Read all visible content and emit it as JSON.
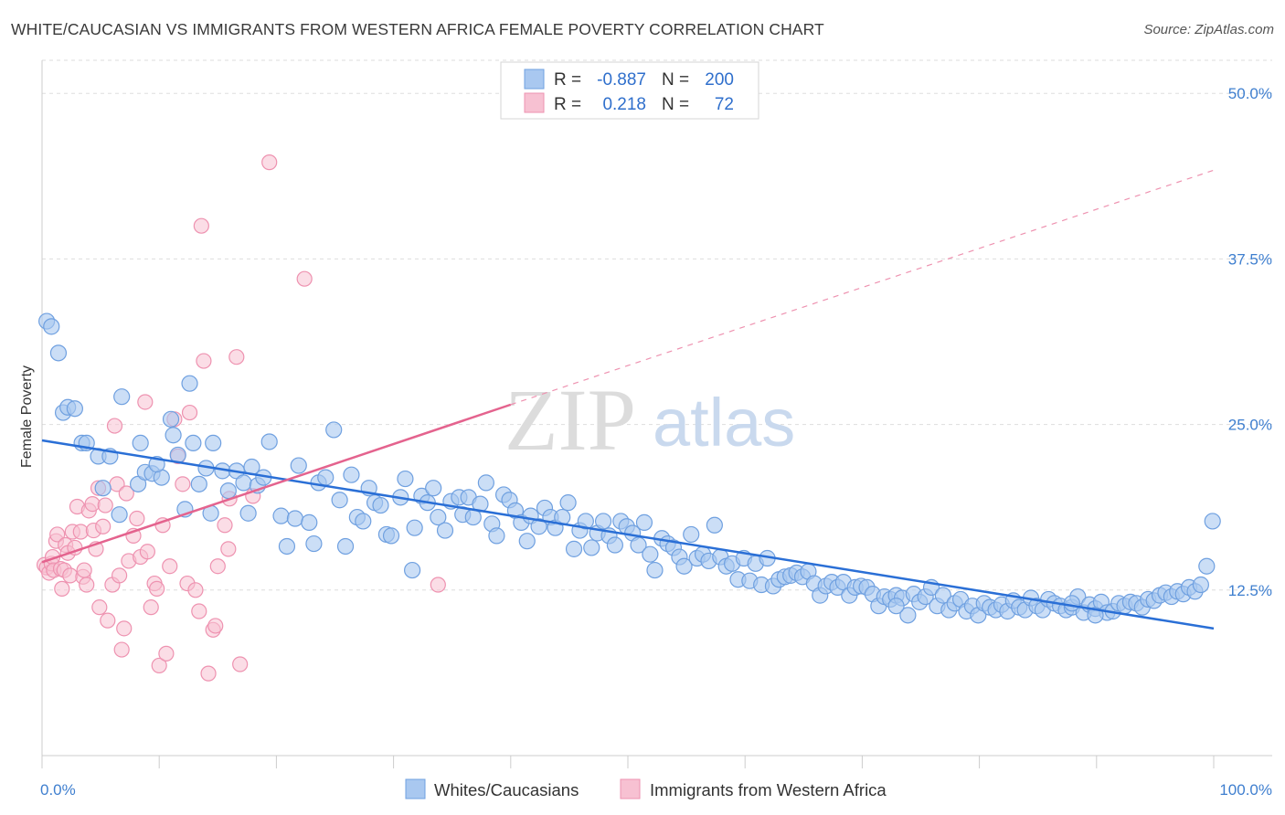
{
  "title": "WHITE/CAUCASIAN VS IMMIGRANTS FROM WESTERN AFRICA FEMALE POVERTY CORRELATION CHART",
  "source": "Source: ZipAtlas.com",
  "watermark": {
    "zip": "ZIP",
    "atlas": "atlas"
  },
  "colors": {
    "blue_fill": "#a9c8f0",
    "blue_stroke": "#6fa0e0",
    "blue_line": "#2a6fd6",
    "pink_fill": "#f7c1d2",
    "pink_stroke": "#ee92b0",
    "pink_line": "#e4638e",
    "tick_label": "#3f7fcf",
    "grid": "#dddddd"
  },
  "legend": {
    "rows": [
      {
        "r_label": "R =",
        "r_value": "-0.887",
        "n_label": "N =",
        "n_value": "200"
      },
      {
        "r_label": "R =",
        "r_value": "0.218",
        "n_label": "N =",
        "n_value": "72"
      }
    ],
    "position": "top-center"
  },
  "bottom_legend": [
    "Whites/Caucasians",
    "Immigrants from Western Africa"
  ],
  "chart_data": {
    "type": "scatter",
    "xlabel": "",
    "ylabel": "Female Poverty",
    "xlim": [
      0,
      100
    ],
    "ylim": [
      0,
      52.5
    ],
    "x_tick_labels": [
      "0.0%",
      "100.0%"
    ],
    "y_ticks": [
      12.5,
      25.0,
      37.5,
      50.0
    ],
    "y_tick_labels": [
      "12.5%",
      "25.0%",
      "37.5%",
      "50.0%"
    ],
    "grid": true,
    "series": [
      {
        "name": "Whites/Caucasians",
        "trend": {
          "x": [
            0,
            100
          ],
          "y": [
            23.8,
            9.6
          ],
          "style": "solid"
        },
        "points": [
          [
            0.4,
            32.8
          ],
          [
            0.8,
            32.4
          ],
          [
            1.4,
            30.4
          ],
          [
            1.8,
            25.9
          ],
          [
            2.2,
            26.3
          ],
          [
            2.8,
            26.2
          ],
          [
            3.4,
            23.6
          ],
          [
            3.8,
            23.6
          ],
          [
            4.8,
            22.6
          ],
          [
            5.8,
            22.6
          ],
          [
            5.2,
            20.2
          ],
          [
            6.6,
            18.2
          ],
          [
            6.8,
            27.1
          ],
          [
            8.2,
            20.5
          ],
          [
            8.4,
            23.6
          ],
          [
            8.8,
            21.4
          ],
          [
            9.4,
            21.3
          ],
          [
            10.2,
            21.0
          ],
          [
            9.8,
            22.0
          ],
          [
            11.0,
            25.4
          ],
          [
            11.2,
            24.2
          ],
          [
            11.6,
            22.7
          ],
          [
            12.2,
            18.6
          ],
          [
            12.6,
            28.1
          ],
          [
            12.9,
            23.6
          ],
          [
            13.4,
            20.5
          ],
          [
            14.0,
            21.7
          ],
          [
            14.4,
            18.3
          ],
          [
            14.6,
            23.6
          ],
          [
            15.4,
            21.5
          ],
          [
            15.9,
            20.0
          ],
          [
            16.6,
            21.5
          ],
          [
            17.2,
            20.6
          ],
          [
            17.6,
            18.3
          ],
          [
            17.9,
            21.8
          ],
          [
            18.4,
            20.4
          ],
          [
            18.9,
            21.0
          ],
          [
            19.4,
            23.7
          ],
          [
            20.4,
            18.1
          ],
          [
            20.9,
            15.8
          ],
          [
            21.6,
            17.9
          ],
          [
            21.9,
            21.9
          ],
          [
            22.8,
            17.6
          ],
          [
            23.2,
            16.0
          ],
          [
            23.6,
            20.6
          ],
          [
            24.2,
            21.0
          ],
          [
            24.9,
            24.6
          ],
          [
            25.4,
            19.3
          ],
          [
            25.9,
            15.8
          ],
          [
            26.4,
            21.2
          ],
          [
            26.9,
            18.0
          ],
          [
            27.4,
            17.7
          ],
          [
            27.9,
            20.2
          ],
          [
            28.4,
            19.1
          ],
          [
            28.9,
            18.9
          ],
          [
            29.4,
            16.7
          ],
          [
            29.8,
            16.6
          ],
          [
            30.6,
            19.5
          ],
          [
            31.0,
            20.9
          ],
          [
            31.6,
            14.0
          ],
          [
            31.8,
            17.2
          ],
          [
            32.4,
            19.6
          ],
          [
            32.9,
            19.1
          ],
          [
            33.4,
            20.2
          ],
          [
            33.8,
            18.0
          ],
          [
            34.4,
            17.0
          ],
          [
            34.9,
            19.2
          ],
          [
            35.6,
            19.5
          ],
          [
            35.9,
            18.2
          ],
          [
            36.4,
            19.5
          ],
          [
            36.8,
            18.0
          ],
          [
            37.4,
            19.0
          ],
          [
            37.9,
            20.6
          ],
          [
            38.4,
            17.5
          ],
          [
            38.8,
            16.6
          ],
          [
            39.4,
            19.7
          ],
          [
            39.9,
            19.3
          ],
          [
            40.4,
            18.5
          ],
          [
            40.9,
            17.6
          ],
          [
            41.4,
            16.2
          ],
          [
            41.7,
            18.1
          ],
          [
            42.4,
            17.3
          ],
          [
            42.9,
            18.7
          ],
          [
            43.4,
            18.0
          ],
          [
            43.8,
            17.2
          ],
          [
            44.4,
            18.0
          ],
          [
            44.9,
            19.1
          ],
          [
            45.4,
            15.6
          ],
          [
            45.9,
            17.0
          ],
          [
            46.4,
            17.7
          ],
          [
            46.9,
            15.7
          ],
          [
            47.4,
            16.8
          ],
          [
            47.9,
            17.7
          ],
          [
            48.4,
            16.6
          ],
          [
            48.9,
            15.9
          ],
          [
            49.4,
            17.7
          ],
          [
            49.9,
            17.3
          ],
          [
            50.4,
            16.8
          ],
          [
            50.9,
            15.9
          ],
          [
            51.4,
            17.6
          ],
          [
            51.9,
            15.2
          ],
          [
            52.3,
            14.0
          ],
          [
            52.9,
            16.4
          ],
          [
            53.4,
            16.0
          ],
          [
            53.9,
            15.7
          ],
          [
            54.4,
            15.0
          ],
          [
            54.8,
            14.3
          ],
          [
            55.4,
            16.7
          ],
          [
            55.9,
            14.9
          ],
          [
            56.4,
            15.2
          ],
          [
            56.9,
            14.7
          ],
          [
            57.4,
            17.4
          ],
          [
            57.9,
            15.0
          ],
          [
            58.4,
            14.3
          ],
          [
            58.9,
            14.5
          ],
          [
            59.4,
            13.3
          ],
          [
            59.9,
            14.9
          ],
          [
            60.4,
            13.2
          ],
          [
            60.9,
            14.5
          ],
          [
            61.4,
            12.9
          ],
          [
            61.9,
            14.9
          ],
          [
            62.4,
            12.8
          ],
          [
            62.9,
            13.3
          ],
          [
            63.4,
            13.5
          ],
          [
            63.9,
            13.6
          ],
          [
            64.4,
            13.8
          ],
          [
            64.9,
            13.5
          ],
          [
            65.4,
            13.9
          ],
          [
            65.9,
            13.0
          ],
          [
            66.4,
            12.1
          ],
          [
            66.9,
            12.8
          ],
          [
            67.4,
            13.1
          ],
          [
            67.9,
            12.7
          ],
          [
            68.4,
            13.1
          ],
          [
            68.9,
            12.1
          ],
          [
            69.4,
            12.7
          ],
          [
            69.9,
            12.8
          ],
          [
            70.4,
            12.7
          ],
          [
            70.9,
            12.2
          ],
          [
            71.4,
            11.3
          ],
          [
            71.9,
            12.0
          ],
          [
            72.4,
            11.8
          ],
          [
            72.9,
            12.1
          ],
          [
            73.4,
            11.9
          ],
          [
            73.9,
            10.6
          ],
          [
            74.4,
            12.2
          ],
          [
            74.9,
            11.6
          ],
          [
            75.4,
            12.0
          ],
          [
            75.9,
            12.7
          ],
          [
            76.4,
            11.3
          ],
          [
            76.9,
            12.1
          ],
          [
            77.4,
            11.0
          ],
          [
            77.9,
            11.5
          ],
          [
            78.4,
            11.8
          ],
          [
            78.9,
            10.9
          ],
          [
            79.4,
            11.3
          ],
          [
            79.9,
            10.6
          ],
          [
            80.4,
            11.5
          ],
          [
            80.9,
            11.2
          ],
          [
            81.4,
            11.0
          ],
          [
            81.9,
            11.4
          ],
          [
            82.4,
            10.9
          ],
          [
            82.9,
            11.7
          ],
          [
            83.4,
            11.2
          ],
          [
            83.9,
            11.0
          ],
          [
            84.4,
            11.9
          ],
          [
            84.9,
            11.3
          ],
          [
            85.4,
            11.0
          ],
          [
            85.9,
            11.8
          ],
          [
            86.4,
            11.5
          ],
          [
            86.9,
            11.3
          ],
          [
            87.4,
            11.0
          ],
          [
            87.9,
            11.2
          ],
          [
            88.4,
            12.0
          ],
          [
            88.9,
            10.8
          ],
          [
            89.4,
            11.4
          ],
          [
            89.9,
            11.1
          ],
          [
            90.4,
            11.6
          ],
          [
            90.9,
            10.8
          ],
          [
            91.4,
            10.9
          ],
          [
            91.9,
            11.5
          ],
          [
            92.4,
            11.3
          ],
          [
            92.9,
            11.6
          ],
          [
            93.4,
            11.5
          ],
          [
            93.9,
            11.2
          ],
          [
            94.4,
            11.8
          ],
          [
            94.9,
            11.7
          ],
          [
            95.4,
            12.1
          ],
          [
            95.9,
            12.3
          ],
          [
            96.4,
            12.0
          ],
          [
            96.9,
            12.4
          ],
          [
            97.4,
            12.2
          ],
          [
            97.9,
            12.7
          ],
          [
            98.4,
            12.4
          ],
          [
            98.9,
            12.9
          ],
          [
            99.4,
            14.3
          ],
          [
            99.9,
            17.7
          ],
          [
            89.9,
            10.6
          ],
          [
            87.9,
            11.5
          ],
          [
            72.9,
            11.3
          ]
        ]
      },
      {
        "name": "Immigrants from Western Africa",
        "trend": {
          "x": [
            0,
            40
          ],
          "y": [
            14.6,
            26.5
          ],
          "style": "solid"
        },
        "trend_extension": {
          "x": [
            40,
            100
          ],
          "y": [
            26.5,
            44.2
          ],
          "style": "dashed"
        },
        "points": [
          [
            0.2,
            14.4
          ],
          [
            0.4,
            14.2
          ],
          [
            0.6,
            13.8
          ],
          [
            0.8,
            14.5
          ],
          [
            0.9,
            15.0
          ],
          [
            1.0,
            14.0
          ],
          [
            1.2,
            16.2
          ],
          [
            1.3,
            16.7
          ],
          [
            1.6,
            14.1
          ],
          [
            1.7,
            12.6
          ],
          [
            1.9,
            14.0
          ],
          [
            2.0,
            15.9
          ],
          [
            2.2,
            15.3
          ],
          [
            2.4,
            13.6
          ],
          [
            2.6,
            16.9
          ],
          [
            2.8,
            15.7
          ],
          [
            3.0,
            18.8
          ],
          [
            3.3,
            16.9
          ],
          [
            3.5,
            13.5
          ],
          [
            3.6,
            14.0
          ],
          [
            3.8,
            12.9
          ],
          [
            4.0,
            18.5
          ],
          [
            4.3,
            19.0
          ],
          [
            4.4,
            17.0
          ],
          [
            4.6,
            15.6
          ],
          [
            4.9,
            11.2
          ],
          [
            4.8,
            20.2
          ],
          [
            5.2,
            17.3
          ],
          [
            5.4,
            18.9
          ],
          [
            5.6,
            10.2
          ],
          [
            6.0,
            12.9
          ],
          [
            6.2,
            24.9
          ],
          [
            6.4,
            20.5
          ],
          [
            6.6,
            13.6
          ],
          [
            6.8,
            8.0
          ],
          [
            7.0,
            9.6
          ],
          [
            7.2,
            19.8
          ],
          [
            7.4,
            14.7
          ],
          [
            7.8,
            16.6
          ],
          [
            8.1,
            17.9
          ],
          [
            8.4,
            15.0
          ],
          [
            8.8,
            26.7
          ],
          [
            9.0,
            15.4
          ],
          [
            9.3,
            11.2
          ],
          [
            9.6,
            13.0
          ],
          [
            9.8,
            12.6
          ],
          [
            10.0,
            6.8
          ],
          [
            10.3,
            17.4
          ],
          [
            10.6,
            7.7
          ],
          [
            10.9,
            14.3
          ],
          [
            11.3,
            25.4
          ],
          [
            11.6,
            22.6
          ],
          [
            12.0,
            20.5
          ],
          [
            12.4,
            13.0
          ],
          [
            12.6,
            25.9
          ],
          [
            13.1,
            12.5
          ],
          [
            13.4,
            10.9
          ],
          [
            13.6,
            40.0
          ],
          [
            13.8,
            29.8
          ],
          [
            14.2,
            6.2
          ],
          [
            14.6,
            9.5
          ],
          [
            14.8,
            9.8
          ],
          [
            15.0,
            14.3
          ],
          [
            15.6,
            17.4
          ],
          [
            15.9,
            15.6
          ],
          [
            16.6,
            30.1
          ],
          [
            16.9,
            6.9
          ],
          [
            18.0,
            19.6
          ],
          [
            19.4,
            44.8
          ],
          [
            22.4,
            36.0
          ],
          [
            16.0,
            19.4
          ],
          [
            33.8,
            12.9
          ]
        ]
      }
    ]
  }
}
